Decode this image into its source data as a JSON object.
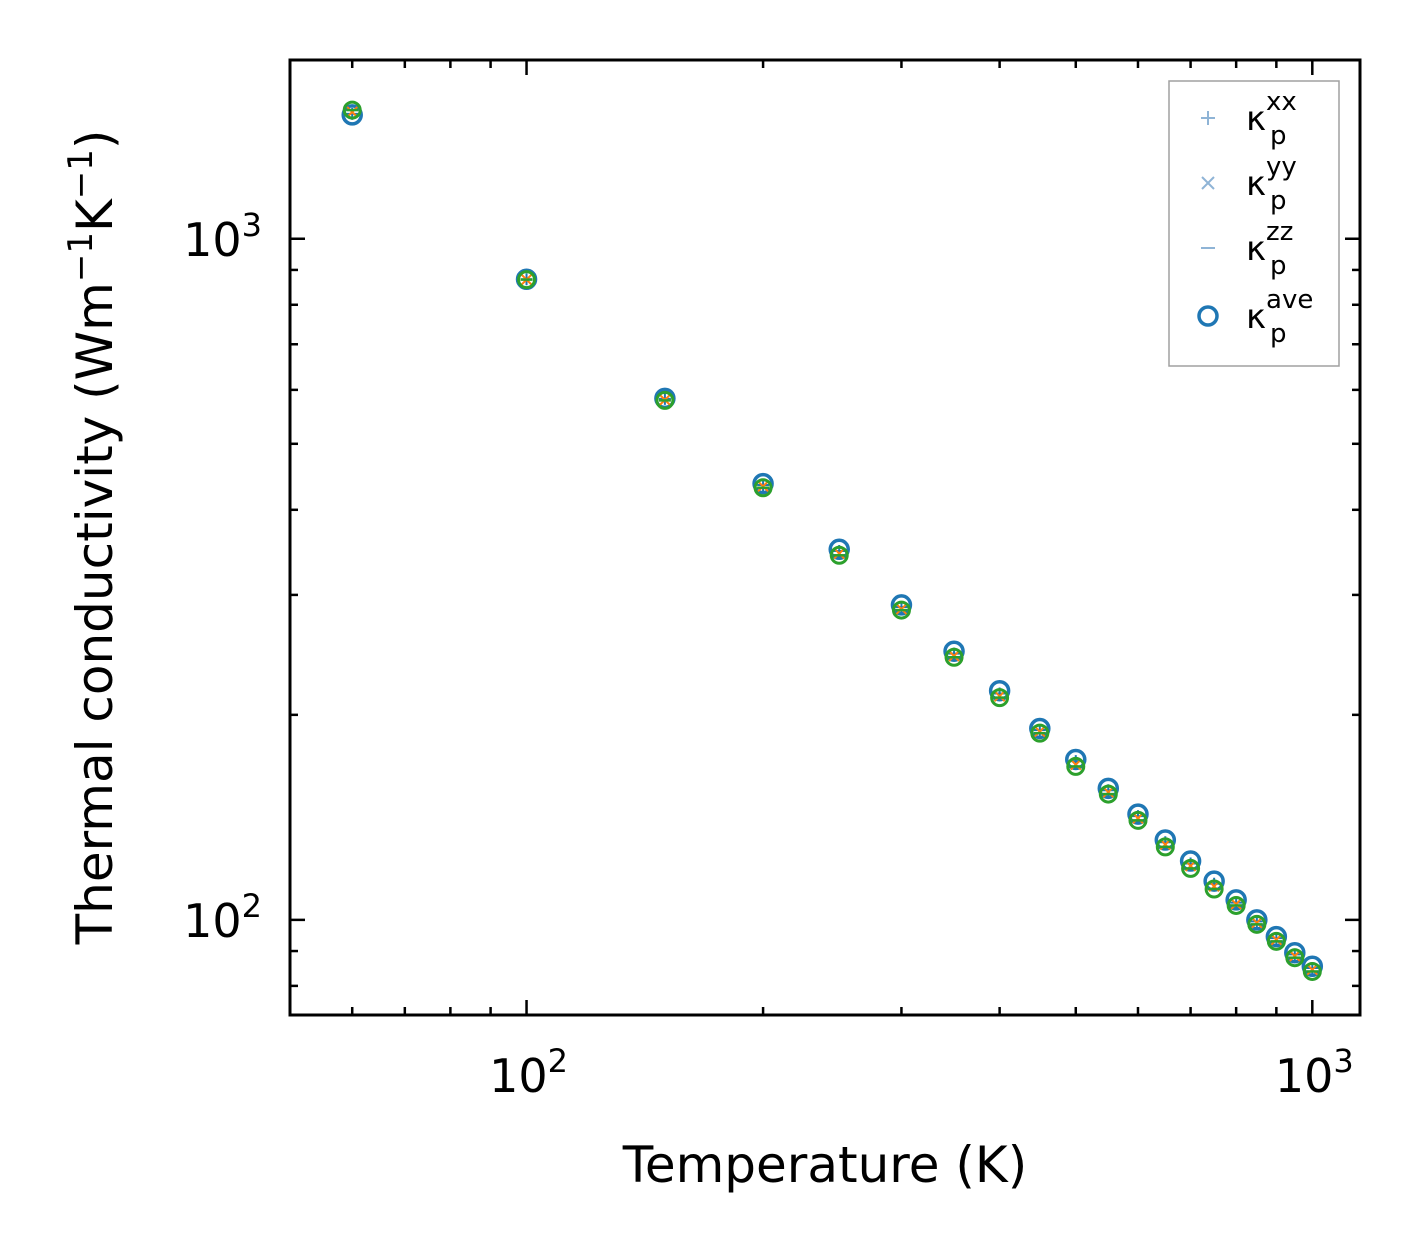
{
  "chart_data": {
    "type": "scatter",
    "scale": {
      "x": "log",
      "y": "log"
    },
    "xlim": [
      50,
      1150
    ],
    "ylim": [
      72.5,
      1830
    ],
    "xlabel": "Temperature (K)",
    "ylabel": {
      "prefix": "Thermal conductivity (Wm",
      "sup1": "−1",
      "mid": "K",
      "sup2": "−1",
      "suffix": ")"
    },
    "x_tick_labels": [
      {
        "value": 100,
        "base": "10",
        "exp": "2"
      },
      {
        "value": 1000,
        "base": "10",
        "exp": "3"
      }
    ],
    "y_tick_labels": [
      {
        "value": 100,
        "base": "10",
        "exp": "2"
      },
      {
        "value": 1000,
        "base": "10",
        "exp": "3"
      }
    ],
    "x": [
      60,
      100,
      150,
      200,
      250,
      300,
      350,
      400,
      450,
      500,
      550,
      600,
      650,
      700,
      750,
      800,
      850,
      900,
      950,
      1000
    ],
    "series": [
      {
        "name": "κp^ave",
        "label_base": "κ",
        "label_sup": "ave",
        "label_sub": "p",
        "marker": "o",
        "color": "#1f77b4",
        "values": [
          1520,
          872,
          583,
          437,
          350,
          290,
          248,
          217,
          191,
          172,
          156,
          143,
          131,
          122,
          114,
          107,
          100,
          94.5,
          89.5,
          85.5
        ]
      },
      {
        "name": "κp^xx",
        "label_base": "κ",
        "label_sup": "xx",
        "label_sub": "p",
        "marker": "+",
        "color": "#1f77b4",
        "values": [
          1525,
          872,
          582,
          435,
          348,
          288,
          246,
          215,
          190,
          171,
          155,
          142,
          130,
          121,
          113,
          106,
          99.5,
          94,
          89,
          85
        ]
      },
      {
        "name": "κp^yy",
        "label_base": "κ",
        "label_sup": "yy",
        "label_sub": "p",
        "marker": "x",
        "color": "#ff7f0e",
        "values": [
          1535,
          871,
          580,
          433,
          345,
          286,
          244,
          213,
          189,
          169,
          154,
          141,
          129,
          120,
          112,
          105.5,
          99,
          93.5,
          88.5,
          84.5
        ]
      },
      {
        "name": "κp^zz",
        "label_base": "κ",
        "label_sup": "zz",
        "label_sub": "p",
        "marker": "_",
        "color": "#2ca02c",
        "values": [
          1545,
          871,
          579,
          431,
          343,
          285,
          243,
          212,
          188,
          168,
          153,
          140,
          128,
          119,
          111,
          105,
          98.5,
          93,
          88,
          84
        ]
      }
    ],
    "legend": {
      "placement": "top-right",
      "entries": [
        {
          "base": "κ",
          "sup": "xx",
          "sub": "p",
          "marker": "+",
          "color": "#8fb4d6"
        },
        {
          "base": "κ",
          "sup": "yy",
          "sub": "p",
          "marker": "x",
          "color": "#8fb4d6"
        },
        {
          "base": "κ",
          "sup": "zz",
          "sub": "p",
          "marker": "_",
          "color": "#8fb4d6"
        },
        {
          "base": "κ",
          "sup": "ave",
          "sub": "p",
          "marker": "o",
          "color": "#1f77b4"
        }
      ]
    },
    "grid": false
  }
}
